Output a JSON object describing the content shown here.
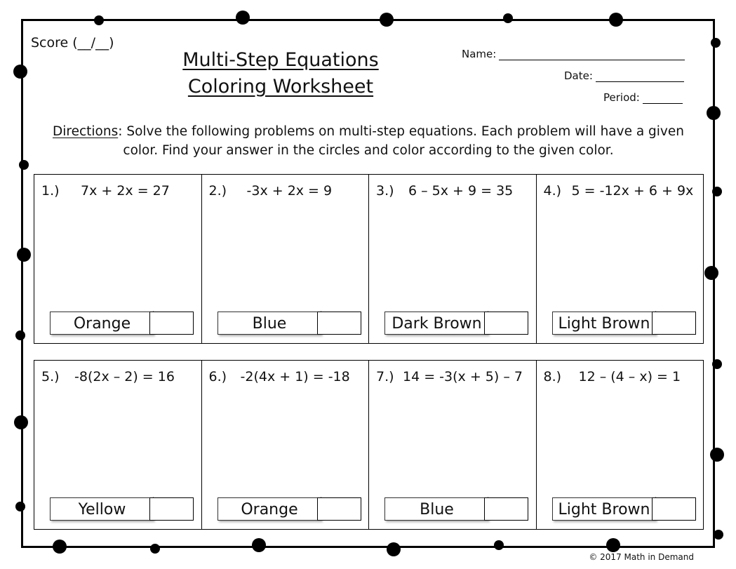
{
  "header": {
    "score": "Score (__/__)",
    "title_line1": "Multi-Step Equations",
    "title_line2": "Coloring Worksheet",
    "name_label": "Name:",
    "date_label": "Date:",
    "period_label": "Period:"
  },
  "directions": {
    "label": "Directions",
    "text": ": Solve the following problems on multi-step equations.  Each problem will have a given color.  Find your answer in the circles and color according to the given color."
  },
  "problems": [
    {
      "num": "1.)",
      "eq": "7x + 2x = 27",
      "color": "Orange"
    },
    {
      "num": "2.)",
      "eq": "-3x + 2x = 9",
      "color": "Blue"
    },
    {
      "num": "3.)",
      "eq": "6 – 5x + 9 = 35",
      "color": "Dark Brown"
    },
    {
      "num": "4.)",
      "eq": "5 = -12x + 6 + 9x",
      "color": "Light Brown"
    },
    {
      "num": "5.)",
      "eq": "-8(2x – 2) = 16",
      "color": "Yellow"
    },
    {
      "num": "6.)",
      "eq": "-2(4x + 1) = -18",
      "color": "Orange"
    },
    {
      "num": "7.)",
      "eq": "14 = -3(x + 5) – 7",
      "color": "Blue"
    },
    {
      "num": "8.)",
      "eq": "12 – (4 – x) = 1",
      "color": "Light Brown"
    }
  ],
  "footer": {
    "copyright": "© 2017 Math in Demand"
  }
}
